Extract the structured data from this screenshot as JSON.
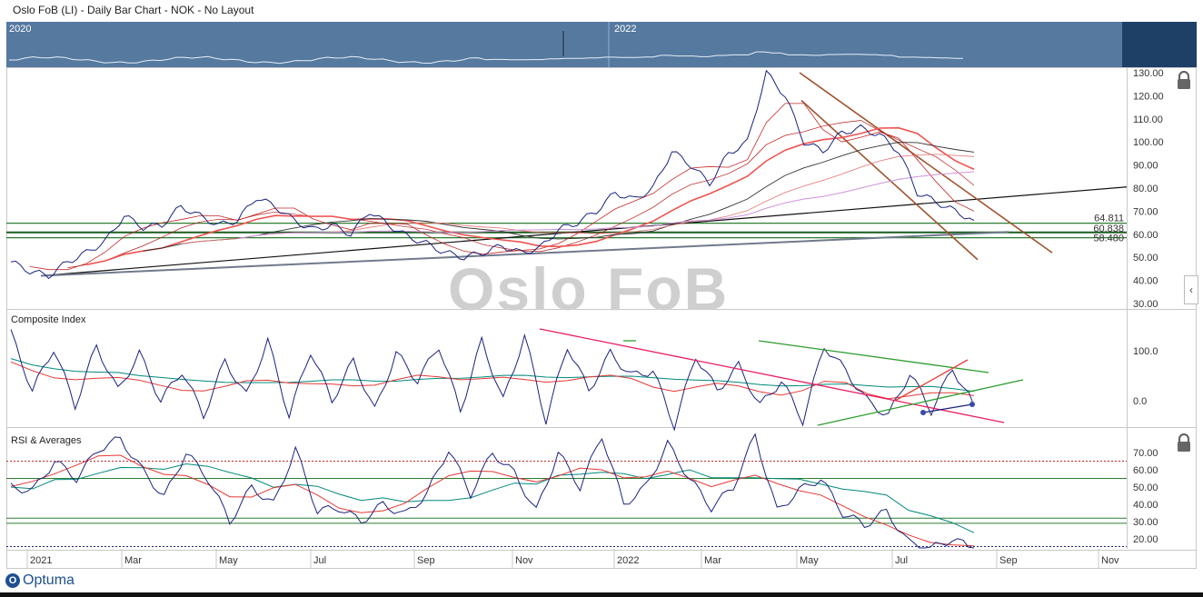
{
  "window": {
    "title": "Oslo FoB (LI) - Daily Bar Chart - NOK - No Layout"
  },
  "overview": {
    "years": [
      "2020",
      "2022"
    ]
  },
  "watermark": "Oslo FoB",
  "brand": {
    "name": "Optuma",
    "logo_letter": "O"
  },
  "icons": {
    "lock": "lock-icon",
    "scroll": "chevron-left-icon"
  },
  "colors": {
    "price": "#1a237e",
    "ma_red": "#e53935",
    "ma_teal": "#00897b",
    "support": "#2e7d32",
    "channel": "#a0522d",
    "overview": "#55799f"
  },
  "chart_data": [
    {
      "type": "line",
      "title": "",
      "ylim": [
        30,
        130
      ],
      "y_ticks": [
        "130.00",
        "120.00",
        "110.00",
        "100.00",
        "90.00",
        "80.00",
        "70.00",
        "60.00",
        "50.00",
        "40.00",
        "30.00"
      ],
      "x_labels": [
        "2021",
        "Mar",
        "May",
        "Jul",
        "Sep",
        "Nov",
        "2022",
        "Mar",
        "May",
        "Jul",
        "Sep",
        "Nov"
      ],
      "level_labels": [
        "64.811",
        "60.838",
        "58.480"
      ],
      "series": [
        {
          "values": [
            48,
            44,
            42,
            48,
            52,
            57,
            68,
            63,
            64,
            72,
            68,
            64,
            66,
            76,
            72,
            66,
            62,
            64,
            60,
            70,
            64,
            59,
            56,
            52,
            50,
            52,
            55,
            52,
            54,
            62,
            65,
            70,
            78,
            75,
            80,
            96,
            90,
            82,
            95,
            100,
            130,
            120,
            100,
            96,
            104,
            106,
            103,
            96,
            78,
            74,
            70,
            66
          ]
        }
      ]
    },
    {
      "type": "line",
      "title": "Composite Index",
      "y_ticks": [
        "100.0",
        "0.0"
      ],
      "series": [
        {
          "values": [
            135,
            20,
            105,
            -10,
            110,
            20,
            95,
            0,
            60,
            -30,
            80,
            10,
            120,
            -30,
            100,
            0,
            80,
            -20,
            95,
            40,
            110,
            -20,
            120,
            0,
            130,
            -40,
            110,
            20,
            95,
            50,
            60,
            -50,
            90,
            20,
            70,
            -10,
            40,
            -40,
            110,
            60,
            0,
            -30,
            55,
            -20,
            65,
            -10
          ]
        }
      ]
    },
    {
      "type": "line",
      "title": "RSI & Averages",
      "y_ticks": [
        "70.00",
        "60.00",
        "50.00",
        "40.00",
        "30.00",
        "20.00"
      ],
      "series": [
        {
          "values": [
            50,
            48,
            65,
            55,
            72,
            78,
            60,
            44,
            70,
            55,
            30,
            50,
            40,
            72,
            36,
            38,
            30,
            40,
            34,
            46,
            72,
            46,
            70,
            58,
            36,
            70,
            50,
            80,
            40,
            50,
            75,
            55,
            38,
            50,
            80,
            36,
            48,
            55,
            35,
            28,
            36,
            18,
            14,
            20,
            14
          ]
        }
      ]
    }
  ]
}
